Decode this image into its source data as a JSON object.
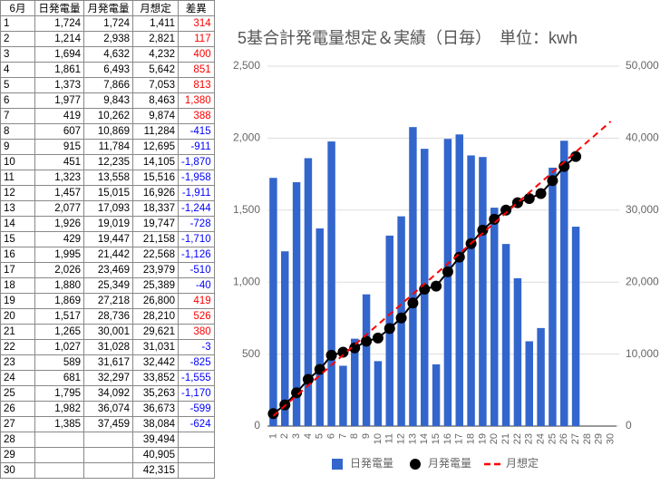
{
  "table": {
    "positive_color": "#ff0000",
    "negative_color": "#0000ff",
    "header": [
      "6月",
      "日発電量",
      "月発電量",
      "月想定",
      "差異"
    ],
    "rows": [
      [
        "1",
        "1,724",
        "1,724",
        "1,411",
        "314"
      ],
      [
        "2",
        "1,214",
        "2,938",
        "2,821",
        "117"
      ],
      [
        "3",
        "1,694",
        "4,632",
        "4,232",
        "400"
      ],
      [
        "4",
        "1,861",
        "6,493",
        "5,642",
        "851"
      ],
      [
        "5",
        "1,373",
        "7,866",
        "7,053",
        "813"
      ],
      [
        "6",
        "1,977",
        "9,843",
        "8,463",
        "1,380"
      ],
      [
        "7",
        "419",
        "10,262",
        "9,874",
        "388"
      ],
      [
        "8",
        "607",
        "10,869",
        "11,284",
        "-415"
      ],
      [
        "9",
        "915",
        "11,784",
        "12,695",
        "-911"
      ],
      [
        "10",
        "451",
        "12,235",
        "14,105",
        "-1,870"
      ],
      [
        "11",
        "1,323",
        "13,558",
        "15,516",
        "-1,958"
      ],
      [
        "12",
        "1,457",
        "15,015",
        "16,926",
        "-1,911"
      ],
      [
        "13",
        "2,077",
        "17,093",
        "18,337",
        "-1,244"
      ],
      [
        "14",
        "1,926",
        "19,019",
        "19,747",
        "-728"
      ],
      [
        "15",
        "429",
        "19,447",
        "21,158",
        "-1,710"
      ],
      [
        "16",
        "1,995",
        "21,442",
        "22,568",
        "-1,126"
      ],
      [
        "17",
        "2,026",
        "23,469",
        "23,979",
        "-510"
      ],
      [
        "18",
        "1,880",
        "25,349",
        "25,389",
        "-40"
      ],
      [
        "19",
        "1,869",
        "27,218",
        "26,800",
        "419"
      ],
      [
        "20",
        "1,517",
        "28,736",
        "28,210",
        "526"
      ],
      [
        "21",
        "1,265",
        "30,001",
        "29,621",
        "380"
      ],
      [
        "22",
        "1,027",
        "31,028",
        "31,031",
        "-3"
      ],
      [
        "23",
        "589",
        "31,617",
        "32,442",
        "-825"
      ],
      [
        "24",
        "681",
        "32,297",
        "33,852",
        "-1,555"
      ],
      [
        "25",
        "1,795",
        "34,092",
        "35,263",
        "-1,170"
      ],
      [
        "26",
        "1,982",
        "36,074",
        "36,673",
        "-599"
      ],
      [
        "27",
        "1,385",
        "37,459",
        "38,084",
        "-624"
      ],
      [
        "28",
        null,
        null,
        "39,494",
        null
      ],
      [
        "29",
        null,
        null,
        "40,905",
        null
      ],
      [
        "30",
        null,
        null,
        "42,315",
        null
      ]
    ]
  },
  "chart_data": {
    "type": "bar-line",
    "title": "5基合計発電量想定＆実績（日毎）　単位：kwh",
    "categories": [
      "1",
      "2",
      "3",
      "4",
      "5",
      "6",
      "7",
      "8",
      "9",
      "10",
      "11",
      "12",
      "13",
      "14",
      "15",
      "16",
      "17",
      "18",
      "19",
      "20",
      "21",
      "22",
      "23",
      "24",
      "25",
      "26",
      "27",
      "28",
      "29",
      "30"
    ],
    "series": [
      {
        "name": "日発電量",
        "type": "bar",
        "color": "#3366cc",
        "axis": "y",
        "values": [
          1724,
          1214,
          1694,
          1861,
          1373,
          1977,
          419,
          607,
          915,
          451,
          1323,
          1457,
          2077,
          1926,
          429,
          1995,
          2026,
          1880,
          1869,
          1517,
          1265,
          1027,
          589,
          681,
          1795,
          1982,
          1385,
          null,
          null,
          null
        ]
      },
      {
        "name": "月発電量",
        "type": "line",
        "marker": "circle",
        "dashed": false,
        "color": "#000000",
        "axis": "y2",
        "values": [
          1724,
          2938,
          4632,
          6493,
          7866,
          9843,
          10262,
          10869,
          11784,
          12235,
          13558,
          15015,
          17093,
          19019,
          19447,
          21442,
          23469,
          25349,
          27218,
          28736,
          30001,
          31028,
          31617,
          32297,
          34092,
          36074,
          37459,
          null,
          null,
          null
        ]
      },
      {
        "name": "月想定",
        "type": "line",
        "marker": "none",
        "dashed": true,
        "color": "#ff0000",
        "axis": "y2",
        "values": [
          1411,
          2821,
          4232,
          5642,
          7053,
          8463,
          9874,
          11284,
          12695,
          14105,
          15516,
          16926,
          18337,
          19747,
          21158,
          22568,
          23979,
          25389,
          26800,
          28210,
          29621,
          31031,
          32442,
          33852,
          35263,
          36673,
          38084,
          39494,
          40905,
          42315
        ]
      }
    ],
    "ylim": [
      0,
      2500
    ],
    "yticks": [
      0,
      500,
      {
        "value": 1000,
        "label": "1,000"
      },
      {
        "value": 1500,
        "label": "1,500"
      },
      {
        "value": 2000,
        "label": "2,000"
      },
      {
        "value": 2500,
        "label": "2,500"
      }
    ],
    "y2lim": [
      0,
      50000
    ],
    "y2ticks": [
      0,
      {
        "value": 10000,
        "label": "10,000"
      },
      {
        "value": 20000,
        "label": "20,000"
      },
      {
        "value": 30000,
        "label": "30,000"
      },
      {
        "value": 40000,
        "label": "40,000"
      },
      {
        "value": 50000,
        "label": "50,000"
      }
    ],
    "grid": true,
    "legend": "bottom"
  }
}
